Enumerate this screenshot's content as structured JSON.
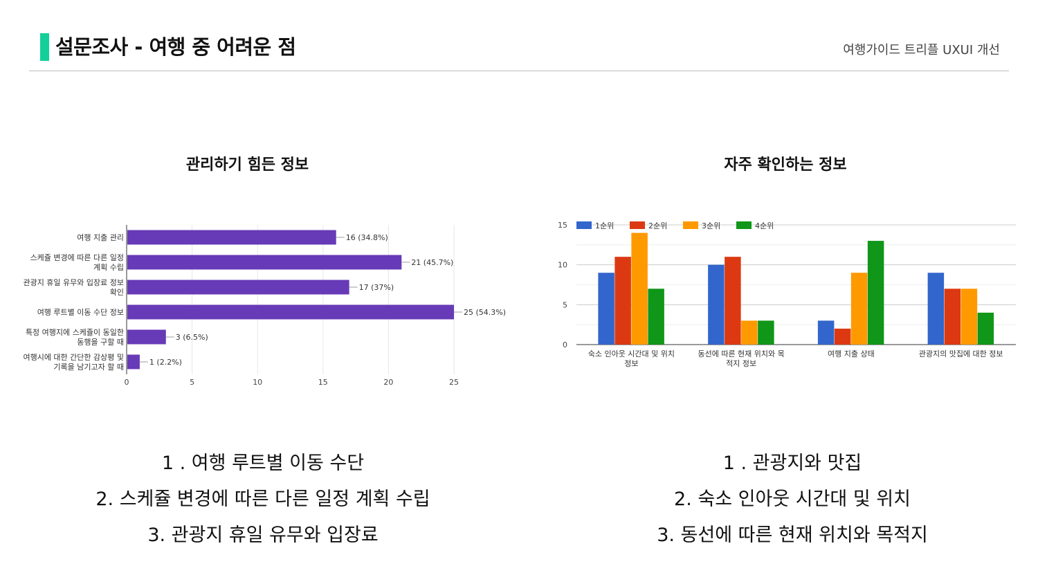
{
  "header": {
    "title": "설문조사 - 여행 중 어려운 점",
    "subtitle": "여행가이드 트리플 UXUI 개선"
  },
  "colors": {
    "accent": "#14cf99",
    "bar_purple": "#673ab7",
    "series_blue": "#3366cc",
    "series_red": "#dc3912",
    "series_orange": "#ff9900",
    "series_green": "#109618"
  },
  "chart_data": [
    {
      "type": "bar",
      "orientation": "horizontal",
      "title": "관리하기 힘든 정보",
      "categories": [
        [
          "여행 지출 관리"
        ],
        [
          "스케쥴 변경에 따른 다른 일정",
          "계획 수립"
        ],
        [
          "관광지 휴일 유무와 입장료 정보",
          "확인"
        ],
        [
          "여행 루트별 이동 수단 정보"
        ],
        [
          "특정 여행지에 스케쥴이 동일한",
          "동행을 구할 때"
        ],
        [
          "여행시에 대한 간단한 감상평 및",
          "기록을 남기고자 할 때"
        ]
      ],
      "values": [
        16,
        21,
        17,
        25,
        3,
        1
      ],
      "data_labels": [
        "16 (34.8%)",
        "21 (45.7%)",
        "17 (37%)",
        "25 (54.3%)",
        "3 (6.5%)",
        "1 (2.2%)"
      ],
      "xlim": [
        0,
        25
      ],
      "xticks": [
        "0",
        "5",
        "10",
        "15",
        "20",
        "25"
      ],
      "grid": true
    },
    {
      "type": "bar",
      "orientation": "vertical",
      "title": "자주 확인하는 정보",
      "categories": [
        [
          "숙소 인아웃 시간대 및 위치",
          "정보"
        ],
        [
          "동선에 따른 현재 위치와 목",
          "적지 정보"
        ],
        [
          "여행 지출 상태"
        ],
        [
          "관광지의 맛집에 대한 정보"
        ]
      ],
      "series": [
        {
          "name": "1순위",
          "values": [
            9,
            10,
            3,
            9
          ]
        },
        {
          "name": "2순위",
          "values": [
            11,
            11,
            2,
            7
          ]
        },
        {
          "name": "3순위",
          "values": [
            14,
            3,
            9,
            7
          ]
        },
        {
          "name": "4순위",
          "values": [
            7,
            3,
            13,
            4
          ]
        }
      ],
      "ylim": [
        0,
        15
      ],
      "yticks": [
        "0",
        "5",
        "10",
        "15"
      ],
      "legend": "top-left",
      "grid": true
    }
  ],
  "findings": {
    "left": [
      "1 . 여행 루트별 이동 수단",
      "2. 스케쥴 변경에 따른 다른 일정 계획 수립",
      "3. 관광지 휴일 유무와 입장료"
    ],
    "right": [
      "1 . 관광지와 맛집",
      "2. 숙소 인아웃 시간대 및 위치",
      "3. 동선에 따른 현재 위치와 목적지"
    ]
  }
}
